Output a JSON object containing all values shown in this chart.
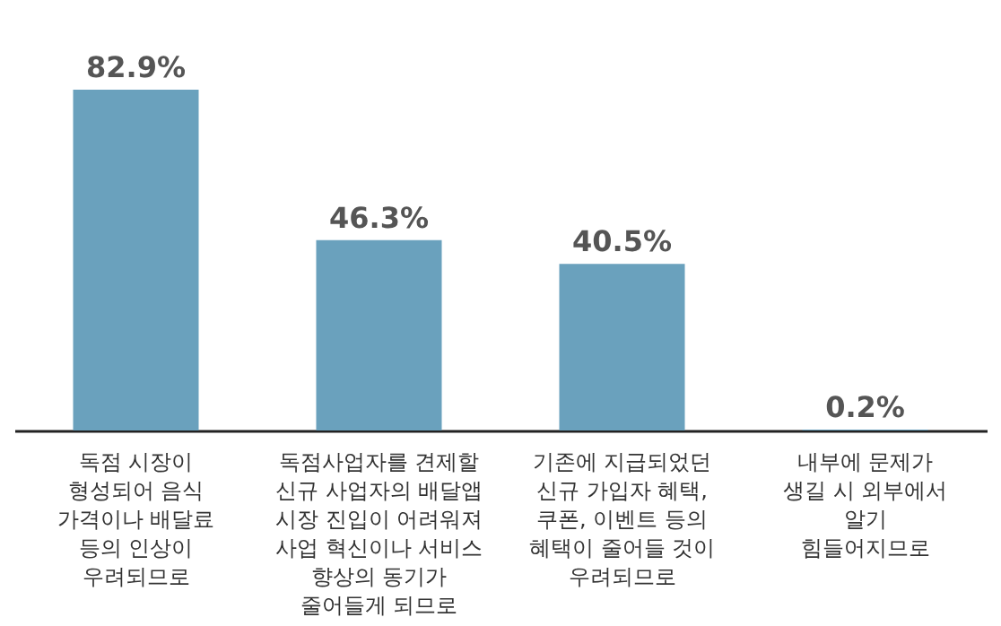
{
  "chart_data": {
    "type": "bar",
    "categories": [
      "독점 시장이\n형성되어 음식\n가격이나 배달료\n등의 인상이\n우려되므로",
      "독점사업자를 견제할\n신규 사업자의 배달앱\n시장 진입이 어려워져\n사업 혁신이나 서비스\n향상의 동기가\n줄어들게 되므로",
      "기존에 지급되었던\n신규 가입자 혜택,\n쿠폰, 이벤트 등의\n혜택이 줄어들 것이\n우려되므로",
      "내부에 문제가\n생길 시 외부에서\n알기\n힘들어지므로"
    ],
    "values": [
      82.9,
      46.3,
      40.5,
      0.2
    ],
    "value_labels": [
      "82.9%",
      "46.3%",
      "40.5%",
      "0.2%"
    ],
    "color": "#6aa1bd"
  }
}
